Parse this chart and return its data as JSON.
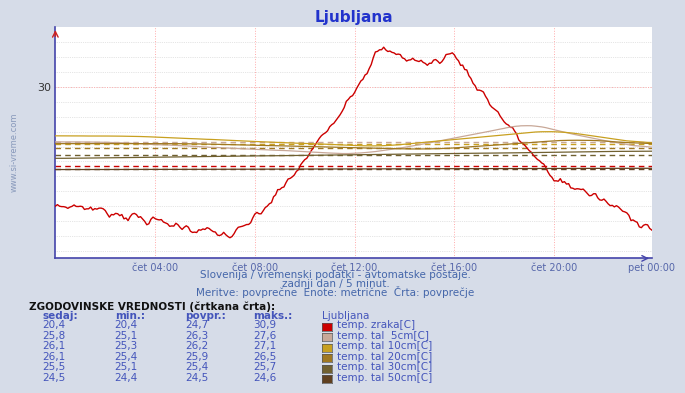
{
  "title": "Ljubljana",
  "bg_color": "#d6dce8",
  "plot_bg_color": "#ffffff",
  "grid_color": "#ffaaaa",
  "grid_color_h": "#cccccc",
  "x_labels": [
    "čet 04:00",
    "čet 08:00",
    "čet 12:00",
    "čet 16:00",
    "čet 20:00",
    "pet 00:00"
  ],
  "y_ticks": [
    30
  ],
  "y_lim": [
    18.5,
    34.0
  ],
  "x_lim": [
    0,
    287
  ],
  "subtitle1": "Slovenija / vremenski podatki - avtomatske postaje.",
  "subtitle2": "zadnji dan / 5 minut.",
  "subtitle3": "Meritve: povprečne  Enote: metrične  Črta: povprečje",
  "watermark": "www.si-vreme.com",
  "table_header": "ZGODOVINSKE VREDNOSTI (črtkana črta):",
  "col_headers": [
    "sedaj:",
    "min.:",
    "povpr.:",
    "maks.:",
    "Ljubljana"
  ],
  "rows": [
    {
      "sedaj": "20,4",
      "min": "20,4",
      "povpr": "24,7",
      "maks": "30,9",
      "label": "temp. zraka[C]",
      "color": "#cc0000"
    },
    {
      "sedaj": "25,8",
      "min": "25,1",
      "povpr": "26,3",
      "maks": "27,6",
      "label": "temp. tal  5cm[C]",
      "color": "#c8a898"
    },
    {
      "sedaj": "26,1",
      "min": "25,3",
      "povpr": "26,2",
      "maks": "27,1",
      "label": "temp. tal 10cm[C]",
      "color": "#c8a020"
    },
    {
      "sedaj": "26,1",
      "min": "25,4",
      "povpr": "25,9",
      "maks": "26,5",
      "label": "temp. tal 20cm[C]",
      "color": "#a07820"
    },
    {
      "sedaj": "25,5",
      "min": "25,1",
      "povpr": "25,4",
      "maks": "25,7",
      "label": "temp. tal 30cm[C]",
      "color": "#706030"
    },
    {
      "sedaj": "24,5",
      "min": "24,4",
      "povpr": "24,5",
      "maks": "24,6",
      "label": "temp. tal 50cm[C]",
      "color": "#604020"
    }
  ],
  "series_colors": [
    "#cc0000",
    "#c8a898",
    "#c8a020",
    "#a07820",
    "#706030",
    "#604020"
  ],
  "avgs": [
    24.7,
    26.3,
    26.2,
    25.9,
    25.4,
    24.5
  ]
}
